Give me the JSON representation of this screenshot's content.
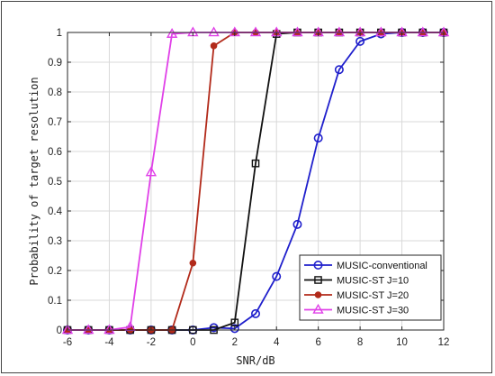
{
  "chart_data": {
    "type": "line",
    "title": "",
    "xlabel": "SNR/dB",
    "ylabel": "Probability of target resolution",
    "xlim": [
      -6,
      12
    ],
    "ylim": [
      0,
      1
    ],
    "xticks": [
      -6,
      -4,
      -2,
      0,
      2,
      4,
      6,
      8,
      10,
      12
    ],
    "yticks": [
      0,
      0.1,
      0.2,
      0.3,
      0.4,
      0.5,
      0.6,
      0.7,
      0.8,
      0.9,
      1
    ],
    "grid": true,
    "legend_position": "bottom-right",
    "x": [
      -6,
      -5,
      -4,
      -3,
      -2,
      -1,
      0,
      1,
      2,
      3,
      4,
      5,
      6,
      7,
      8,
      9,
      10,
      11,
      12
    ],
    "series": [
      {
        "name": "MUSIC-conventional",
        "color": "#1f1fcc",
        "marker": "circle",
        "values": [
          0,
          0,
          0,
          0,
          0,
          0,
          0,
          0.008,
          0.005,
          0.055,
          0.18,
          0.355,
          0.645,
          0.875,
          0.97,
          0.995,
          1,
          1,
          1
        ]
      },
      {
        "name": "MUSIC-ST J=10",
        "color": "#111111",
        "marker": "square",
        "values": [
          0,
          0,
          0,
          0,
          0,
          0,
          0,
          0,
          0.025,
          0.56,
          0.995,
          1,
          1,
          1,
          1,
          1,
          1,
          1,
          1
        ]
      },
      {
        "name": "MUSIC-ST J=20",
        "color": "#b22a1a",
        "marker": "filled-circle",
        "values": [
          0,
          0,
          0,
          0,
          0,
          0,
          0.225,
          0.955,
          1,
          1,
          1,
          1,
          1,
          1,
          1,
          1,
          1,
          1,
          1
        ]
      },
      {
        "name": "MUSIC-ST J=30",
        "color": "#e040e8",
        "marker": "triangle",
        "values": [
          0,
          0,
          0,
          0.01,
          0.53,
          0.995,
          1,
          1,
          1,
          1,
          1,
          1,
          1,
          1,
          1,
          1,
          1,
          1,
          1
        ]
      }
    ]
  }
}
